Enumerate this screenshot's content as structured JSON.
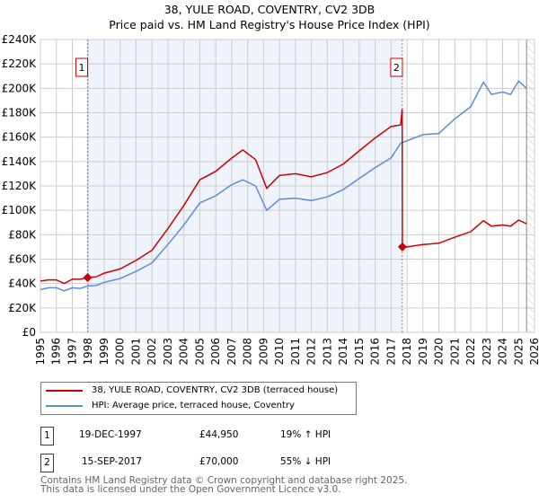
{
  "title_line1": "38, YULE ROAD, COVENTRY, CV2 3DB",
  "title_line2": "Price paid vs. HM Land Registry's House Price Index (HPI)",
  "chart_data": {
    "type": "line",
    "title": "38, YULE ROAD, COVENTRY, CV2 3DB — Price paid vs. HM Land Registry's House Price Index (HPI)",
    "xlim": [
      1995,
      2026
    ],
    "ylim": [
      0,
      240000
    ],
    "yticks": [
      0,
      20000,
      40000,
      60000,
      80000,
      100000,
      120000,
      140000,
      160000,
      180000,
      200000,
      220000,
      240000
    ],
    "ytick_labels": [
      "£0",
      "£20K",
      "£40K",
      "£60K",
      "£80K",
      "£100K",
      "£120K",
      "£140K",
      "£160K",
      "£180K",
      "£200K",
      "£220K",
      "£240K"
    ],
    "xticks": [
      1995,
      1996,
      1997,
      1998,
      1999,
      2000,
      2001,
      2002,
      2003,
      2004,
      2005,
      2006,
      2007,
      2008,
      2009,
      2010,
      2011,
      2012,
      2013,
      2014,
      2015,
      2016,
      2017,
      2018,
      2019,
      2020,
      2021,
      2022,
      2023,
      2024,
      2025,
      2026
    ],
    "grid": true,
    "legend_placement": "below",
    "colors": {
      "property": "#cc0000",
      "hpi": "#5b8fd1",
      "shade": "#eef3fc"
    },
    "series": [
      {
        "name": "38, YULE ROAD, COVENTRY, CV2 3DB (terraced house)",
        "color": "#cc0000",
        "x": [
          1995,
          1995.5,
          1996,
          1996.5,
          1997,
          1997.5,
          1997.96,
          1998,
          1998.5,
          1999,
          2000,
          2001,
          2002,
          2003,
          2004,
          2005,
          2006,
          2007,
          2007.7,
          2008.5,
          2009.2,
          2010,
          2011,
          2012,
          2013,
          2014,
          2015,
          2016,
          2017,
          2017.6,
          2017.7,
          2017.71,
          2018,
          2019,
          2020,
          2021,
          2022,
          2022.8,
          2023.3,
          2024,
          2024.5,
          2025,
          2025.5
        ],
        "y": [
          42000,
          43000,
          43000,
          40000,
          43500,
          43500,
          44950,
          45000,
          45500,
          48500,
          52000,
          59000,
          67300,
          85000,
          104000,
          125000,
          132000,
          142800,
          149500,
          141600,
          118000,
          128600,
          130000,
          127400,
          131000,
          138000,
          148700,
          159300,
          168700,
          170000,
          183000,
          70000,
          70000,
          72000,
          73000,
          78000,
          82500,
          91500,
          87000,
          88000,
          87000,
          92000,
          89000
        ]
      },
      {
        "name": "HPI: Average price, terraced house, Coventry",
        "color": "#5b8fd1",
        "x": [
          1995,
          1995.5,
          1996,
          1996.5,
          1997,
          1997.5,
          1998,
          1998.5,
          1999,
          2000,
          2001,
          2002,
          2003,
          2004,
          2005,
          2006,
          2007,
          2007.7,
          2008.5,
          2009.2,
          2010,
          2011,
          2012,
          2013,
          2014,
          2015,
          2016,
          2017,
          2017.6,
          2018,
          2019,
          2020,
          2021,
          2022,
          2022.8,
          2023.3,
          2024,
          2024.5,
          2025,
          2025.5
        ],
        "y": [
          35000,
          36500,
          36500,
          34000,
          36500,
          36000,
          38100,
          38500,
          41000,
          44000,
          50000,
          57000,
          72000,
          88000,
          106000,
          112000,
          121000,
          125000,
          120000,
          100000,
          109000,
          110000,
          108000,
          111000,
          117000,
          126000,
          135000,
          143000,
          155000,
          157000,
          162000,
          163000,
          175000,
          185000,
          205000,
          195000,
          197000,
          195000,
          206000,
          200000
        ]
      }
    ],
    "sales": [
      {
        "label": "1",
        "x": 1997.96,
        "y": 44950
      },
      {
        "label": "2",
        "x": 2017.71,
        "y": 70000
      }
    ],
    "shaded_range": [
      1997.96,
      2017.71
    ],
    "hatched_from": 2025.5
  },
  "legend": {
    "property": "38, YULE ROAD, COVENTRY, CV2 3DB (terraced house)",
    "hpi": "HPI: Average price, terraced house, Coventry"
  },
  "transactions": [
    {
      "num": "1",
      "date": "19-DEC-1997",
      "price": "£44,950",
      "hpi": "19% ↑ HPI"
    },
    {
      "num": "2",
      "date": "15-SEP-2017",
      "price": "£70,000",
      "hpi": "55% ↓ HPI"
    }
  ],
  "footer": {
    "line1": "Contains HM Land Registry data © Crown copyright and database right 2025.",
    "line2": "This data is licensed under the Open Government Licence v3.0."
  }
}
